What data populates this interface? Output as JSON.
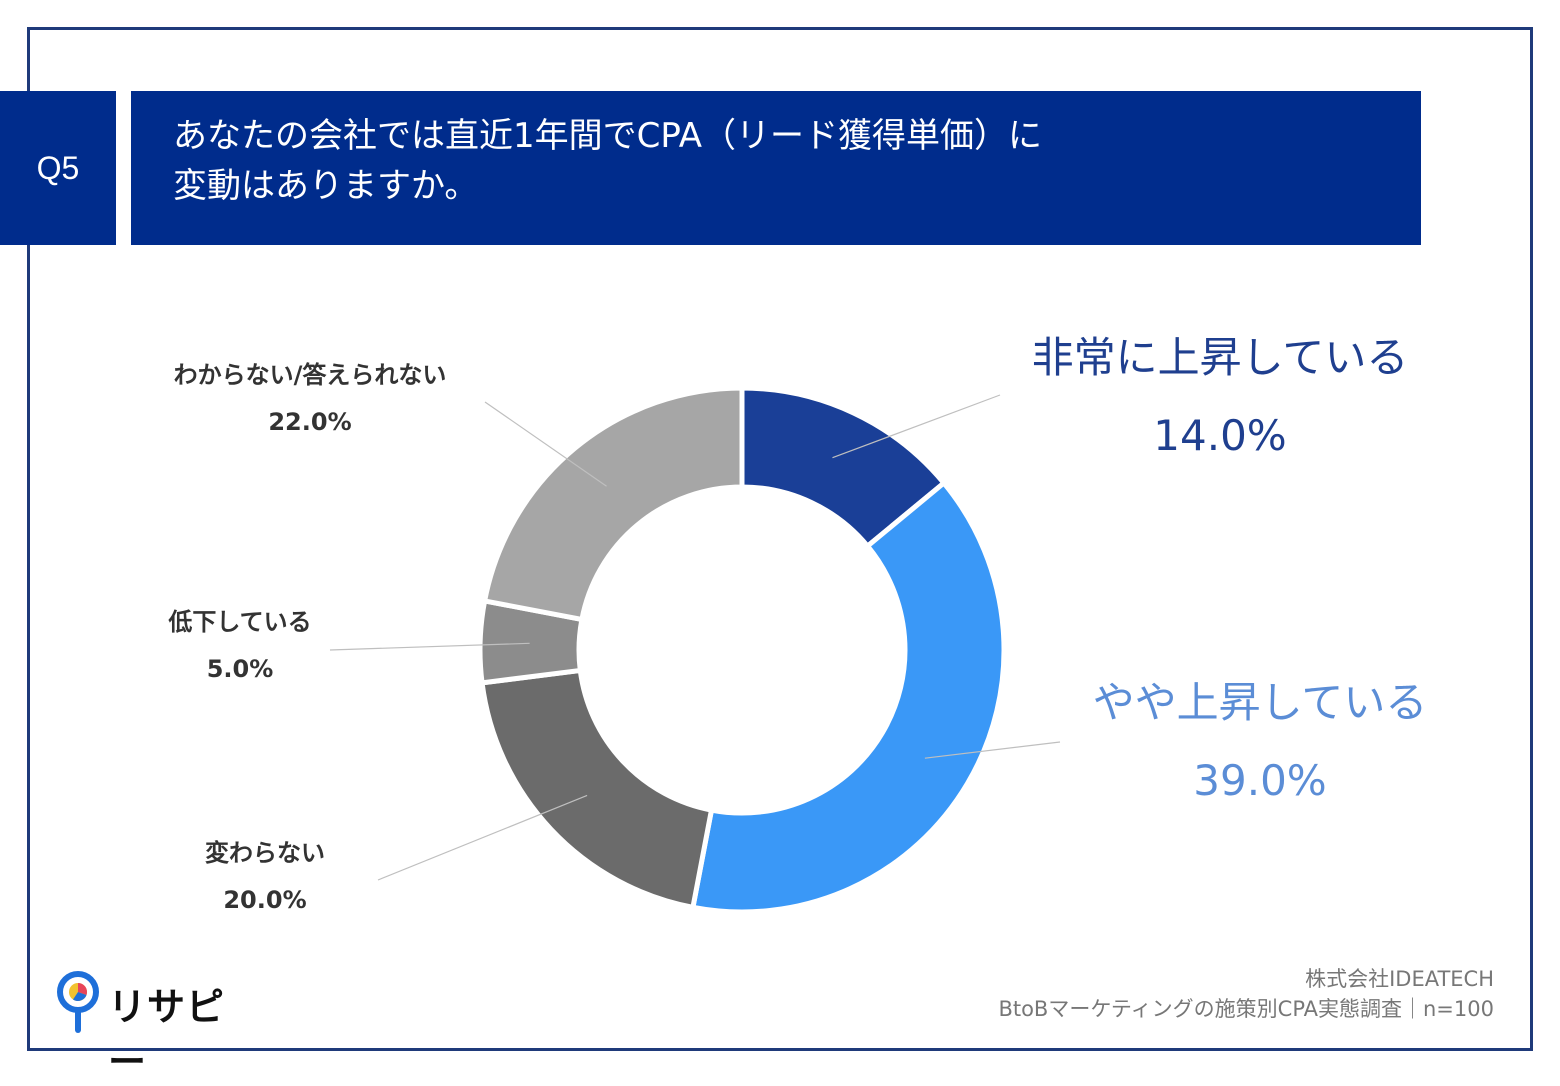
{
  "question": {
    "badge": "Q5",
    "title_line1": "あなたの会社では直近1年間でCPA（リード獲得単価）に",
    "title_line2": "変動はありますか。"
  },
  "chart_data": {
    "type": "pie",
    "style": "donut",
    "start": "top, clockwise",
    "categories": [
      "非常に上昇している",
      "やや上昇している",
      "変わらない",
      "低下している",
      "わからない/答えられない"
    ],
    "values": [
      14.0,
      39.0,
      20.0,
      5.0,
      22.0
    ],
    "labels": [
      "14.0%",
      "39.0%",
      "20.0%",
      "5.0%",
      "22.0%"
    ],
    "colors": [
      "#1a3f97",
      "#3a98f7",
      "#6b6b6b",
      "#8c8c8c",
      "#a6a6a6"
    ]
  },
  "footer": {
    "logo_text": "リサピー",
    "source_line1": "株式会社IDEATECH",
    "source_line2": "BtoBマーケティングの施策別CPA実態調査｜n=100"
  }
}
